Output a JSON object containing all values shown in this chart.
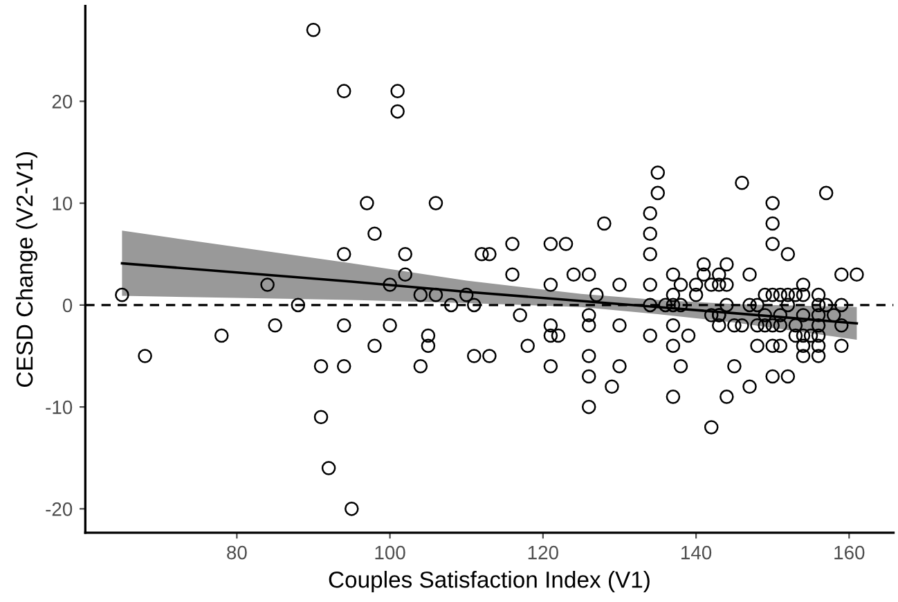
{
  "chart_data": {
    "type": "scatter",
    "xlabel": "Couples Satisfaction Index (V1)",
    "ylabel": "CESD Change (V2-V1)",
    "xlim": [
      60.2,
      165.8
    ],
    "ylim": [
      -22.35,
      29.35
    ],
    "xticks": [
      80,
      100,
      120,
      140,
      160
    ],
    "yticks": [
      -20,
      -10,
      0,
      10,
      20
    ],
    "grid": false,
    "ref_lines": [
      {
        "axis": "y",
        "value": 0,
        "color": "#000000",
        "line_style": "dashed"
      }
    ],
    "series": [
      {
        "color": "#000000",
        "marker": "circle",
        "x": [
          65,
          90,
          94,
          97,
          98,
          94,
          84,
          88,
          68,
          78,
          85,
          94,
          98,
          91,
          94,
          91,
          92,
          95,
          101,
          101,
          106,
          102,
          102,
          100,
          104,
          106,
          108,
          110,
          111,
          112,
          113,
          116,
          116,
          117,
          121,
          121,
          121,
          121,
          122,
          121,
          123,
          100,
          105,
          105,
          104,
          111,
          113,
          118,
          135,
          135,
          128,
          134,
          134,
          134,
          124,
          126,
          127,
          130,
          134,
          134,
          126,
          126,
          130,
          137,
          137,
          137,
          136,
          138,
          138,
          140,
          140,
          141,
          141,
          142,
          143,
          143,
          142,
          143,
          137,
          126,
          126,
          126,
          130,
          129,
          134,
          137,
          139,
          138,
          137,
          142,
          144,
          143,
          146,
          157,
          150,
          150,
          150,
          152,
          144,
          147,
          159,
          161,
          144,
          154,
          149,
          150,
          151,
          152,
          153,
          154,
          156,
          144,
          147,
          148,
          152,
          156,
          157,
          159,
          143,
          149,
          151,
          154,
          156,
          158,
          145,
          146,
          148,
          149,
          150,
          151,
          153,
          156,
          159,
          153,
          154,
          155,
          156,
          148,
          150,
          151,
          154,
          156,
          159,
          154,
          156,
          145,
          150,
          152,
          147
        ],
        "values": [
          1,
          27,
          21,
          10,
          7,
          5,
          2,
          0,
          -5,
          -3,
          -2,
          -2,
          -4,
          -6,
          -6,
          -11,
          -16,
          -20,
          21,
          19,
          10,
          5,
          3,
          2,
          1,
          1,
          0,
          1,
          0,
          5,
          5,
          6,
          3,
          -1,
          6,
          2,
          -2,
          -3,
          -3,
          -6,
          6,
          -2,
          -3,
          -4,
          -6,
          -5,
          -5,
          -4,
          13,
          11,
          8,
          9,
          7,
          5,
          3,
          3,
          1,
          2,
          2,
          0,
          -1,
          -2,
          -2,
          3,
          1,
          0,
          0,
          2,
          0,
          2,
          1,
          4,
          3,
          2,
          2,
          3,
          -1,
          -1,
          -2,
          -5,
          -7,
          -10,
          -6,
          -8,
          -3,
          -4,
          -3,
          -6,
          -9,
          -12,
          -9,
          -2,
          12,
          11,
          10,
          8,
          6,
          5,
          4,
          3,
          3,
          3,
          2,
          2,
          1,
          1,
          1,
          1,
          1,
          1,
          1,
          0,
          0,
          0,
          0,
          0,
          0,
          0,
          -1,
          -1,
          -1,
          -1,
          -1,
          -1,
          -2,
          -2,
          -2,
          -2,
          -2,
          -2,
          -2,
          -2,
          -2,
          -3,
          -3,
          -3,
          -3,
          -4,
          -4,
          -4,
          -4,
          -4,
          -4,
          -5,
          -5,
          -6,
          -7,
          -7,
          -8
        ]
      },
      {
        "type": "line",
        "color": "#000000",
        "line_style": "solid",
        "marker": "none",
        "x": [
          65,
          80,
          95,
          110,
          125,
          135,
          145,
          161
        ],
        "values": [
          4.1,
          3.2,
          2.3,
          1.3,
          0.4,
          -0.2,
          -0.8,
          -1.8
        ],
        "lower": [
          0.9,
          0.7,
          0.5,
          0.2,
          -0.2,
          -0.9,
          -1.7,
          -3.4
        ],
        "upper": [
          7.3,
          5.7,
          4.1,
          2.4,
          1.1,
          0.5,
          0.1,
          -0.2
        ]
      }
    ]
  }
}
